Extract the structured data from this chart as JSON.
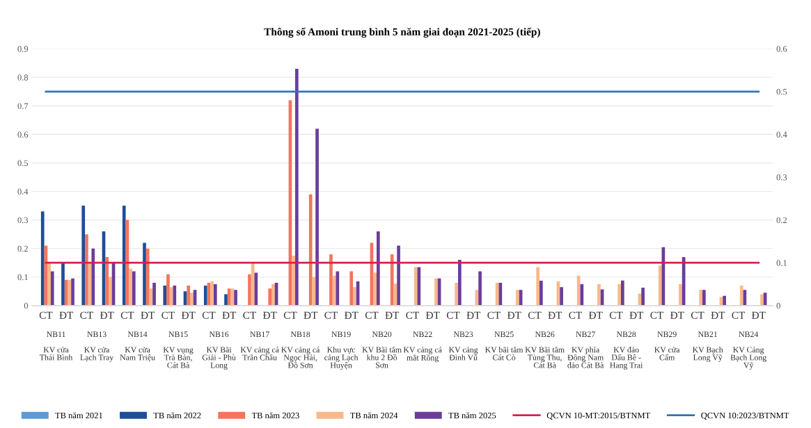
{
  "chart_data": {
    "type": "bar",
    "title": "Thông số Amoni trung bình 5 năm giai đoạn 2021-2025 (tiếp)",
    "categories": [
      "CT",
      "ĐT",
      "CT",
      "ĐT",
      "CT",
      "ĐT",
      "CT",
      "ĐT",
      "CT",
      "ĐT",
      "CT",
      "ĐT",
      "CT",
      "ĐT",
      "CT",
      "ĐT",
      "CT",
      "ĐT",
      "CT",
      "ĐT",
      "CT",
      "ĐT",
      "CT",
      "ĐT",
      "CT",
      "ĐT",
      "CT",
      "ĐT",
      "CT",
      "ĐT",
      "CT",
      "ĐT",
      "CT",
      "ĐT",
      "CT",
      "ĐT"
    ],
    "annotations": [
      "NB11\n\nKV cửa\nThái Bình",
      "NB13\n\nKV cửa\nLạch Tray",
      "NB14\n\nKV cửa\nNam Triệu",
      "NB15\n\nKV vụng\nTrà Bản,\nCát Bà",
      "NB16\n\nKV Bãi\nGiải - Phù\nLong",
      "NB17\n\nKV cảng cá\nTrân Châu",
      "NB18\n\nKV cảng cá\nNgọc Hải,\nĐồ Sơn",
      "NB19\n\nKhu vực\ncảng Lạch\nHuyện",
      "NB20\n\nKV Bãi tắm\nkhu 2 Đồ\nSơn",
      "NB22\n\nKV cảng cá\nmắt Rồng",
      "NB23\n\nKV cảng\nĐình Vũ",
      "NB25\n\nKV bãi tắm\nCát Cò",
      "NB26\n\nKV Bãi tắm\nTùng Thu,\nCát Bà",
      "NB27\n\nKV phía\nĐông Nam\nđảo Cát Bà",
      "NB28\n\nKV đảo\nDấu Bê -\nHang Trai",
      "NB29\n\nKV cửa\nCấm",
      "NB21\n\nKV Bạch\nLong Vỹ",
      "NB24\n\nKV Cảng\nBạch Long\nVỹ"
    ],
    "series": [
      {
        "name": "TB năm 2021",
        "color": "#5b9bd5",
        "values": [
          null,
          null,
          null,
          null,
          null,
          null,
          null,
          null,
          null,
          null,
          null,
          null,
          null,
          null,
          null,
          null,
          null,
          null,
          null,
          null,
          null,
          null,
          null,
          null,
          null,
          null,
          null,
          null,
          null,
          null,
          null,
          null,
          null,
          null,
          null,
          null
        ]
      },
      {
        "name": "TB năm 2022",
        "color": "#1f4e99",
        "values": [
          0.33,
          0.15,
          0.35,
          0.26,
          0.35,
          0.22,
          0.07,
          0.05,
          0.07,
          0.04,
          null,
          null,
          null,
          null,
          null,
          null,
          null,
          null,
          null,
          null,
          null,
          null,
          null,
          null,
          null,
          null,
          null,
          null,
          null,
          null,
          null,
          null,
          null,
          null,
          null,
          null
        ]
      },
      {
        "name": "TB năm 2023",
        "color": "#f4745e",
        "values": [
          0.21,
          0.09,
          0.25,
          0.17,
          0.3,
          0.2,
          0.11,
          0.07,
          0.08,
          0.06,
          0.11,
          0.06,
          0.72,
          0.39,
          0.18,
          0.12,
          0.22,
          0.18,
          null,
          null,
          null,
          null,
          null,
          null,
          null,
          null,
          null,
          null,
          null,
          null,
          null,
          null,
          null,
          null,
          null,
          null
        ]
      },
      {
        "name": "TB năm 2024",
        "color": "#f8b88b",
        "values": [
          0.15,
          0.09,
          0.15,
          0.1,
          0.13,
          0.06,
          0.065,
          0.045,
          0.085,
          0.06,
          0.15,
          0.075,
          0.175,
          0.1,
          0.105,
          0.065,
          0.115,
          0.077,
          0.135,
          0.095,
          0.08,
          0.055,
          0.08,
          0.055,
          0.135,
          0.085,
          0.105,
          0.075,
          0.075,
          0.042,
          0.14,
          0.075,
          0.055,
          0.03,
          0.07,
          0.04
        ]
      },
      {
        "name": "TB năm 2025",
        "color": "#6a3d9a",
        "values": [
          0.12,
          0.095,
          0.2,
          0.15,
          0.12,
          0.08,
          0.07,
          0.055,
          0.075,
          0.055,
          0.115,
          0.08,
          0.83,
          0.62,
          0.12,
          0.085,
          0.26,
          0.21,
          0.135,
          0.095,
          0.16,
          0.12,
          0.08,
          0.055,
          0.087,
          0.065,
          0.075,
          0.057,
          0.088,
          0.063,
          0.205,
          0.17,
          0.055,
          0.034,
          0.055,
          0.045
        ]
      },
      {
        "name": "QCVN 10-MT:2015/BTNMT",
        "type": "line",
        "axis": "y2",
        "color": "#d6204f",
        "values": [
          0.1,
          0.1,
          0.1,
          0.1,
          0.1,
          0.1,
          0.1,
          0.1,
          0.1,
          0.1,
          0.1,
          0.1,
          0.1,
          0.1,
          0.1,
          0.1,
          0.1,
          0.1,
          0.1,
          0.1,
          0.1,
          0.1,
          0.1,
          0.1,
          0.1,
          0.1,
          0.1,
          0.1,
          0.1,
          0.1,
          0.1,
          0.1,
          0.1,
          0.1,
          0.1,
          0.1
        ]
      },
      {
        "name": "QCVN 10:2023/BTNMT",
        "type": "line",
        "axis": "y2",
        "color": "#2e75b6",
        "values": [
          0.5,
          0.5,
          0.5,
          0.5,
          0.5,
          0.5,
          0.5,
          0.5,
          0.5,
          0.5,
          0.5,
          0.5,
          0.5,
          0.5,
          0.5,
          0.5,
          0.5,
          0.5,
          0.5,
          0.5,
          0.5,
          0.5,
          0.5,
          0.5,
          0.5,
          0.5,
          0.5,
          0.5,
          0.5,
          0.5,
          0.5,
          0.5,
          0.5,
          0.5,
          0.5,
          0.5
        ]
      }
    ],
    "ylim": [
      0,
      0.9
    ],
    "yticks": [
      0,
      0.1,
      0.2,
      0.3,
      0.4,
      0.5,
      0.6,
      0.7,
      0.8,
      0.9
    ],
    "y2lim": [
      0,
      0.6
    ],
    "y2ticks": [
      0,
      0.1,
      0.2,
      0.3,
      0.4,
      0.5,
      0.6
    ],
    "grid": "y",
    "legend": "bottom"
  }
}
